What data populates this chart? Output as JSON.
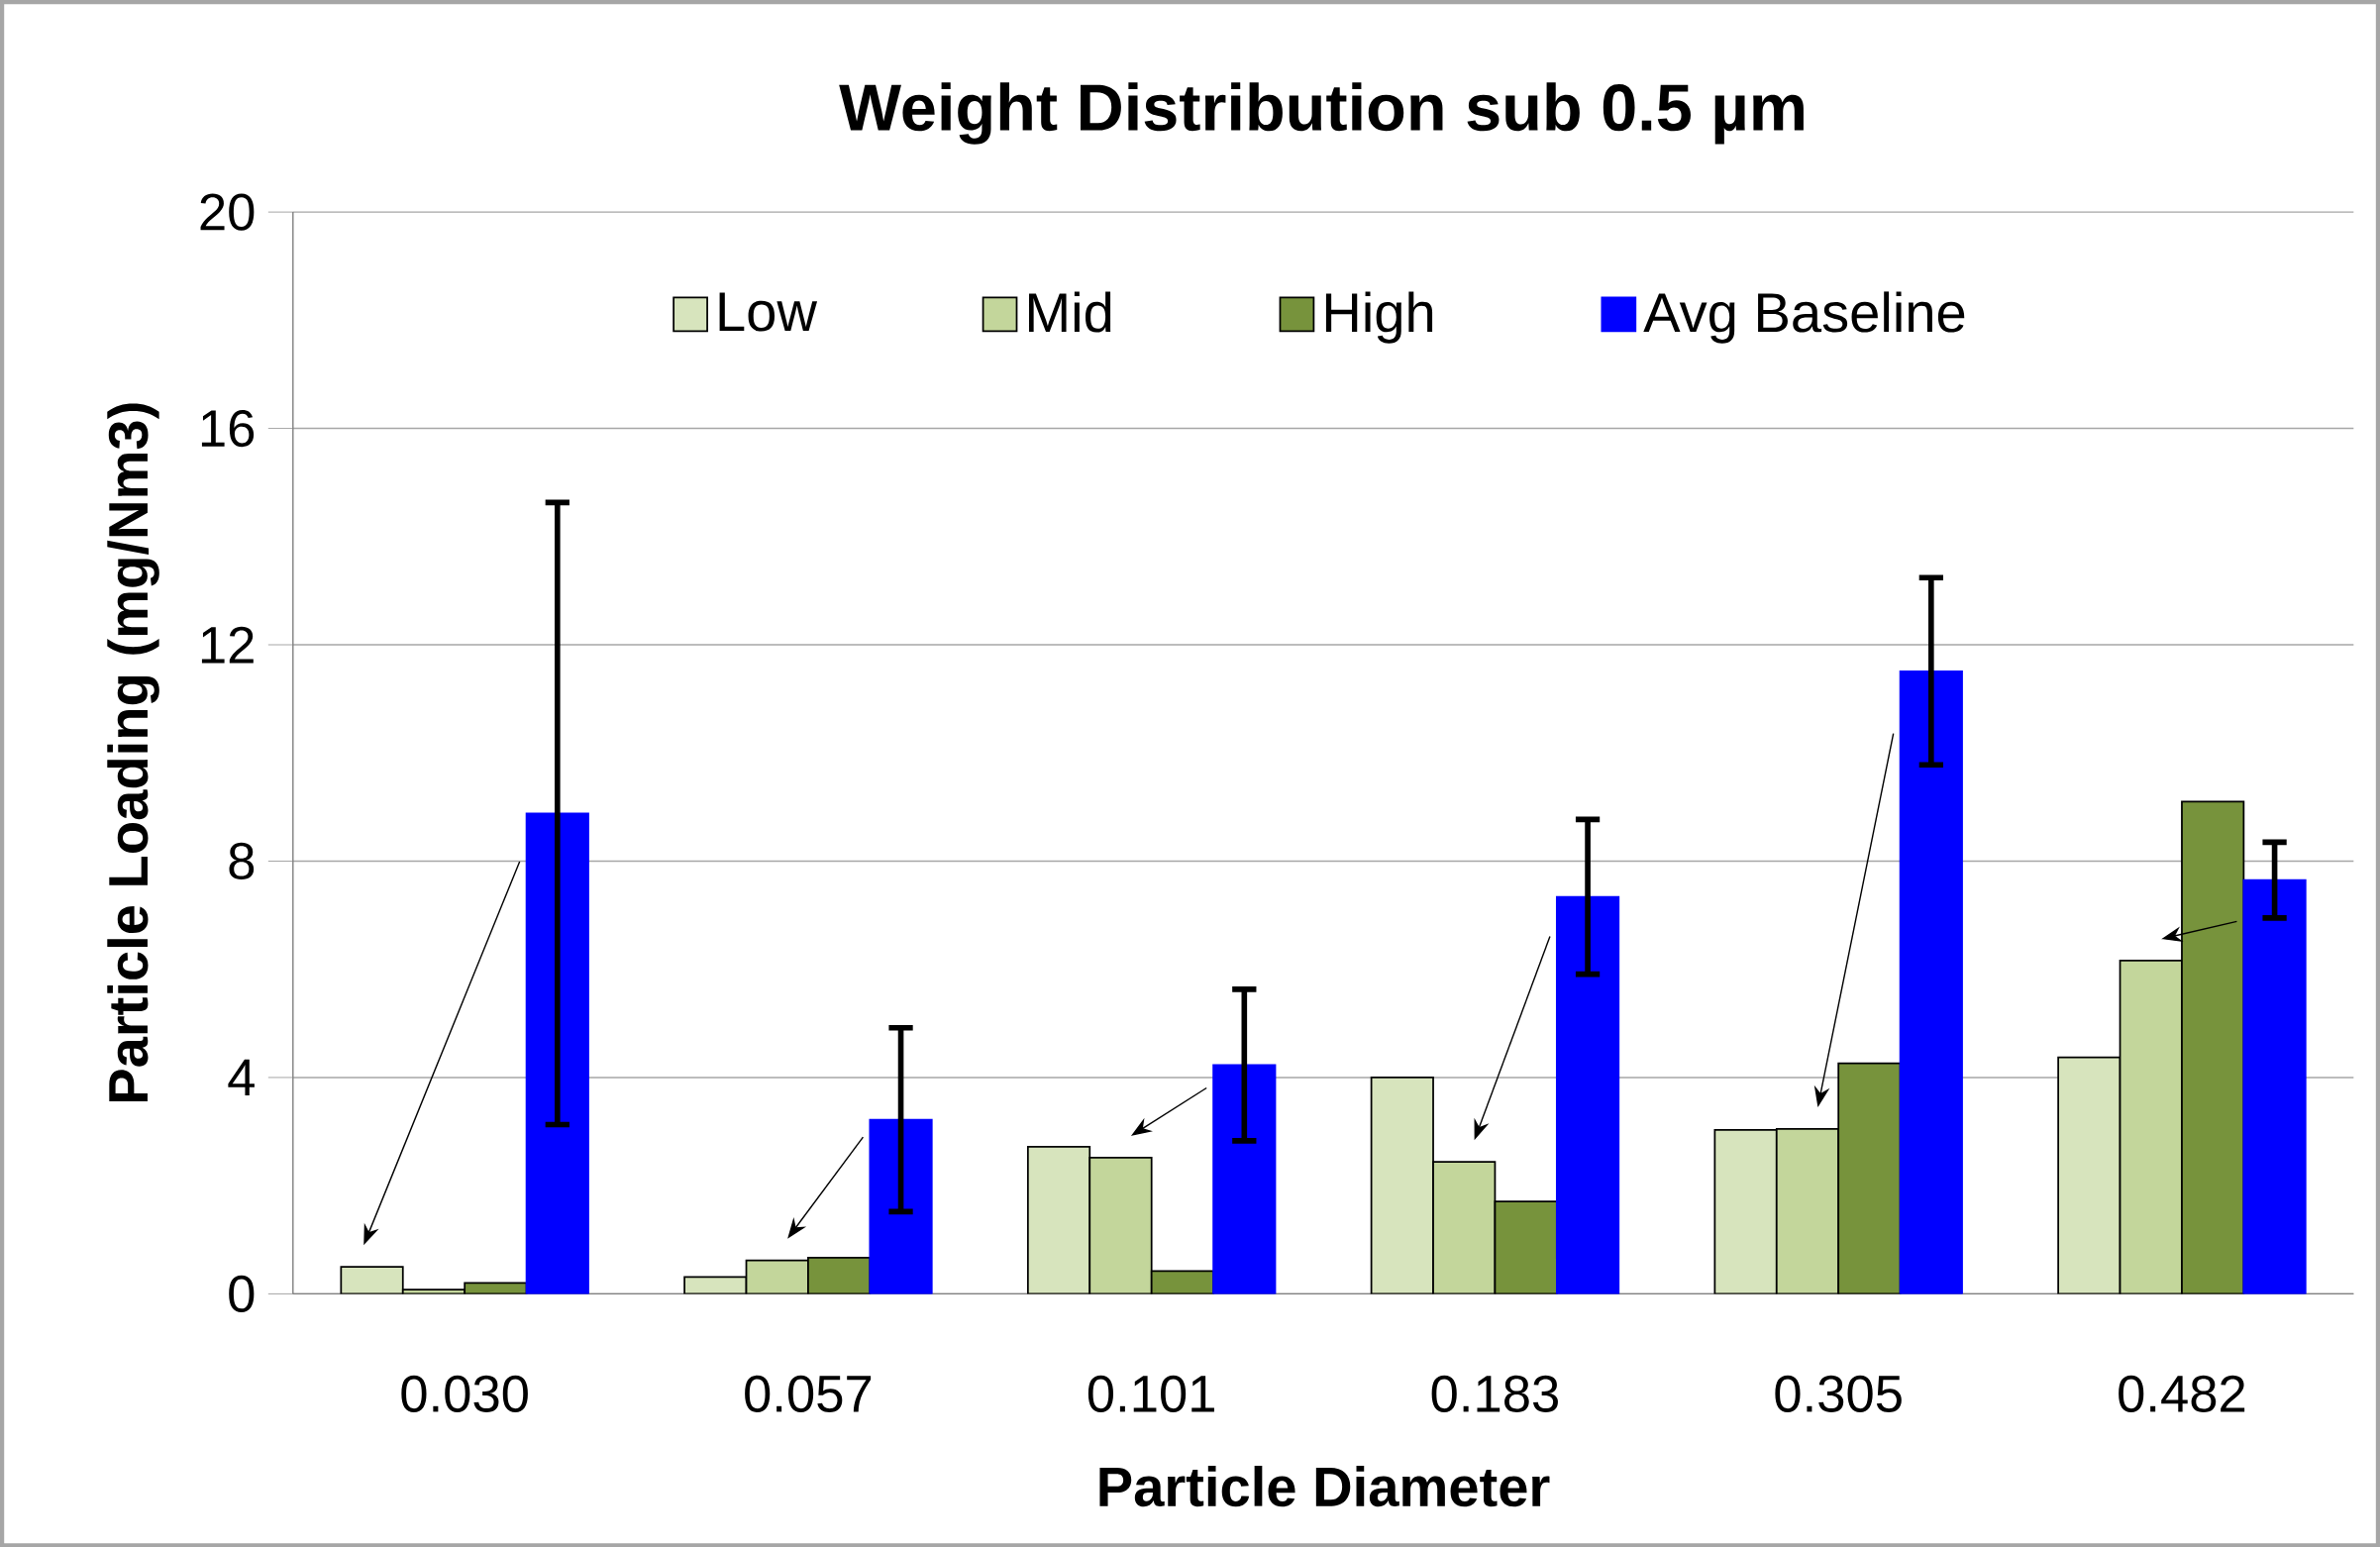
{
  "chart_data": {
    "type": "bar",
    "title": "Weight Distribution  sub 0.5 µm",
    "xlabel": "Particle Diameter",
    "ylabel": "Particle Loading (mg/Nm3)",
    "categories": [
      "0.030",
      "0.057",
      "0.101",
      "0.183",
      "0.305",
      "0.482"
    ],
    "series": [
      {
        "name": "Low",
        "color": "#d7e4bd",
        "values": [
          0.5,
          0.31,
          2.72,
          4.0,
          3.03,
          4.37
        ]
      },
      {
        "name": "Mid",
        "color": "#c3d69b",
        "values": [
          0.08,
          0.62,
          2.52,
          2.44,
          3.05,
          6.16
        ]
      },
      {
        "name": "High",
        "color": "#77933c",
        "values": [
          0.2,
          0.67,
          0.42,
          1.71,
          4.26,
          9.1
        ]
      },
      {
        "name": "Avg Baseline",
        "color": "#0000ff",
        "values": [
          8.88,
          3.22,
          4.23,
          7.34,
          11.51,
          7.65
        ],
        "errors": [
          5.75,
          1.7,
          1.4,
          1.43,
          1.73,
          0.7
        ]
      }
    ],
    "ylim": [
      0,
      20
    ],
    "yticks": [
      0,
      4,
      8,
      12,
      16,
      20
    ],
    "grid": "y",
    "legend": "top"
  }
}
